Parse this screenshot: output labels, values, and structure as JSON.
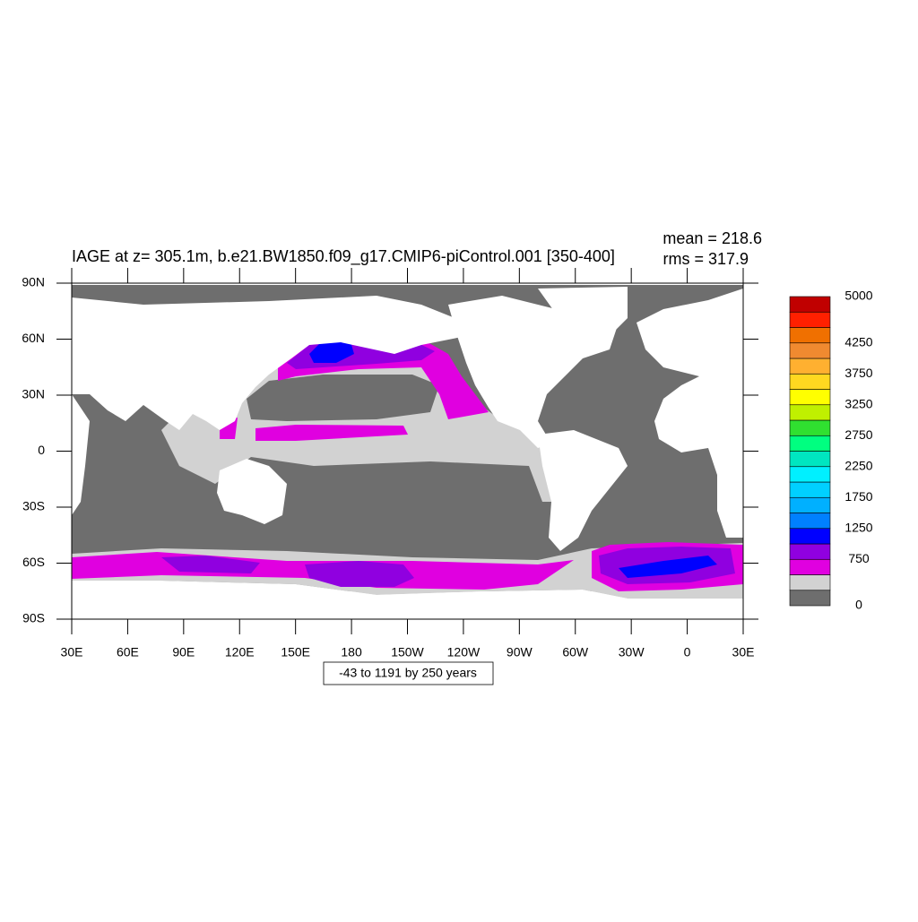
{
  "title": "IAGE at z= 305.1m, b.e21.BW1850.f09_g17.CMIP6-piControl.001 [350-400]",
  "stats": {
    "mean": "mean = 218.6",
    "rms": "rms = 317.9"
  },
  "map": {
    "lon_range": [
      30,
      390
    ],
    "lat_range": [
      -90,
      90
    ],
    "lat_ticks": [
      {
        "value": 90,
        "label": "90N"
      },
      {
        "value": 60,
        "label": "60N"
      },
      {
        "value": 30,
        "label": "30N"
      },
      0,
      {
        "value": -30,
        "label": "30S"
      },
      {
        "value": -60,
        "label": "60S"
      },
      {
        "value": -90,
        "label": "90S"
      }
    ],
    "lon_ticks": [
      {
        "value": 30,
        "label": "30E"
      },
      {
        "value": 60,
        "label": "60E"
      },
      {
        "value": 90,
        "label": "90E"
      },
      {
        "value": 120,
        "label": "120E"
      },
      {
        "value": 150,
        "label": "150E"
      },
      {
        "value": 180,
        "label": "180"
      },
      {
        "value": 210,
        "label": "150W"
      },
      {
        "value": 240,
        "label": "120W"
      },
      {
        "value": 270,
        "label": "90W"
      },
      {
        "value": 300,
        "label": "60W"
      },
      {
        "value": 330,
        "label": "30W"
      },
      {
        "value": 360,
        "label": "0"
      },
      {
        "value": 390,
        "label": "30E"
      }
    ]
  },
  "colorbar": {
    "range": [
      0,
      5000
    ],
    "colors": [
      "#6e6e6e",
      "#d2d2d2",
      "#e000e0",
      "#9000e0",
      "#0000ff",
      "#0080ff",
      "#00b0ff",
      "#00d0ff",
      "#00f0ff",
      "#00e6c0",
      "#00ff80",
      "#30e030",
      "#c0f000",
      "#ffff00",
      "#ffd820",
      "#ffb030",
      "#f08a30",
      "#f07000",
      "#ff2000",
      "#c00000"
    ],
    "labels": [
      0,
      750,
      1250,
      1750,
      2250,
      2750,
      3250,
      3750,
      4250,
      5000
    ]
  },
  "note": "-43 to 1191 by 250 years"
}
